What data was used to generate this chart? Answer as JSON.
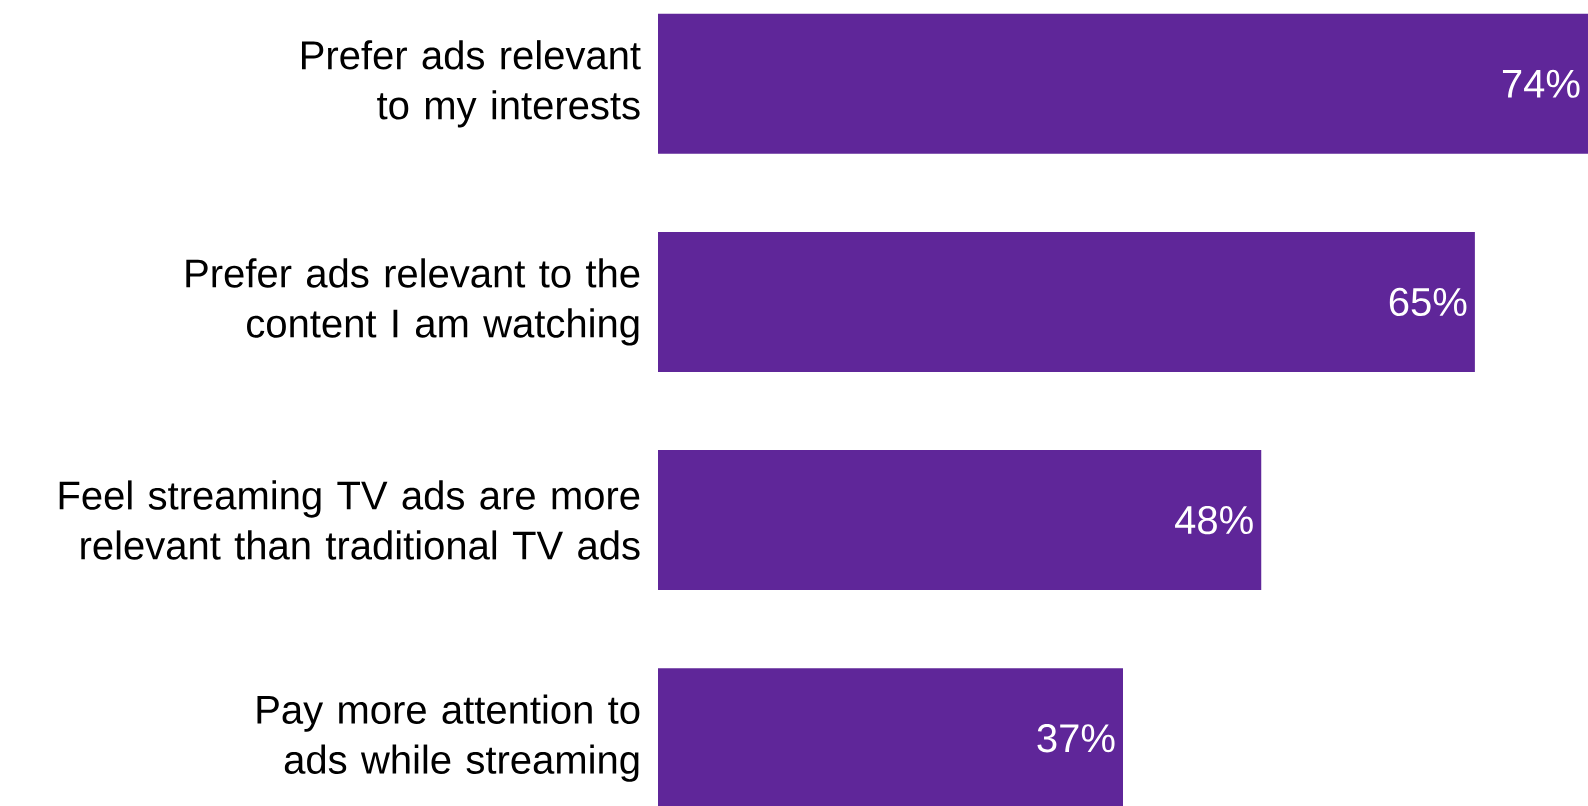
{
  "chart_data": {
    "type": "bar",
    "orientation": "horizontal",
    "categories": [
      "Prefer ads relevant to my interests",
      "Prefer ads relevant to the content I am watching",
      "Feel streaming TV ads are more relevant than traditional TV ads",
      "Pay more attention to ads while streaming"
    ],
    "values": [
      74,
      65,
      48,
      37
    ],
    "value_labels": [
      "74%",
      "65%",
      "48%",
      "37%"
    ],
    "color": "#5f2699"
  }
}
